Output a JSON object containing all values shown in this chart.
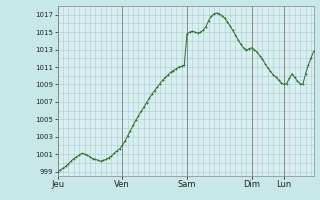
{
  "background_color": "#c8e8e8",
  "plot_bg_color": "#d8eef0",
  "line_color": "#2d6e2d",
  "marker_color": "#2d6e2d",
  "grid_color": "#aacccc",
  "vline_color": "#888888",
  "ylabel_color": "#222222",
  "xlabel_color": "#222222",
  "ylim": [
    998.5,
    1018.0
  ],
  "yticks": [
    999,
    1001,
    1003,
    1005,
    1007,
    1009,
    1011,
    1013,
    1015,
    1017
  ],
  "day_labels": [
    "Jeu",
    "Ven",
    "Sam",
    "Dim",
    "Lun"
  ],
  "day_positions": [
    0,
    24,
    48,
    72,
    84
  ],
  "xlim_max": 95,
  "pressure_data": [
    999.0,
    999.2,
    999.4,
    999.6,
    999.9,
    1000.2,
    1000.5,
    1000.7,
    1000.9,
    1001.1,
    1001.0,
    1000.9,
    1000.7,
    1000.5,
    1000.4,
    1000.3,
    1000.2,
    1000.3,
    1000.4,
    1000.6,
    1000.8,
    1001.1,
    1001.4,
    1001.6,
    1002.0,
    1002.5,
    1003.1,
    1003.7,
    1004.3,
    1004.9,
    1005.4,
    1005.9,
    1006.4,
    1006.9,
    1007.4,
    1007.9,
    1008.3,
    1008.7,
    1009.1,
    1009.5,
    1009.8,
    1010.1,
    1010.4,
    1010.6,
    1010.8,
    1011.0,
    1011.1,
    1011.2,
    1014.8,
    1015.0,
    1015.1,
    1015.0,
    1014.9,
    1015.0,
    1015.2,
    1015.6,
    1016.3,
    1016.8,
    1017.1,
    1017.2,
    1017.1,
    1016.9,
    1016.6,
    1016.2,
    1015.7,
    1015.2,
    1014.7,
    1014.1,
    1013.6,
    1013.2,
    1012.9,
    1013.1,
    1013.2,
    1013.0,
    1012.7,
    1012.3,
    1011.9,
    1011.4,
    1010.9,
    1010.5,
    1010.1,
    1009.9,
    1009.5,
    1009.2,
    1009.0,
    1009.1,
    1009.7,
    1010.2,
    1009.8,
    1009.4,
    1009.1,
    1009.0,
    1010.2,
    1011.2,
    1012.0,
    1012.8
  ]
}
